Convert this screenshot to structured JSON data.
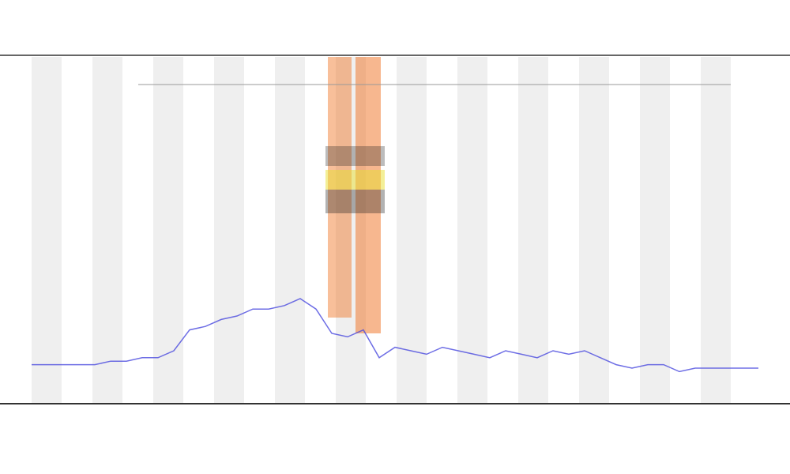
{
  "chart_data": {
    "type": "line",
    "color": "#4a4adf",
    "values": [
      11,
      11,
      11,
      11,
      11,
      12,
      12,
      13,
      13,
      15,
      21,
      22,
      24,
      25,
      27,
      27,
      28,
      30,
      27,
      20,
      19,
      21,
      13,
      16,
      15,
      14,
      16,
      15,
      14,
      13,
      15,
      14,
      13,
      15,
      14,
      15,
      13,
      11,
      10,
      11,
      11,
      9,
      10,
      10,
      10,
      10,
      10
    ],
    "ylim": [
      0,
      100
    ]
  }
}
